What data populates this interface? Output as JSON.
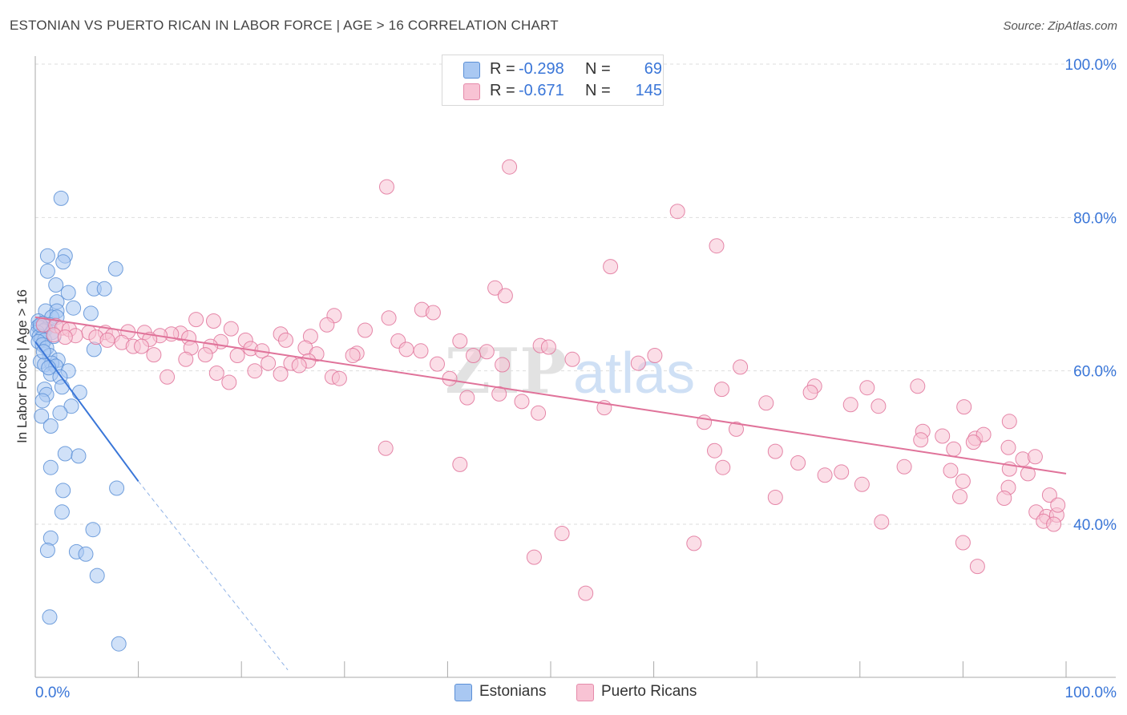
{
  "title": "ESTONIAN VS PUERTO RICAN IN LABOR FORCE | AGE > 16 CORRELATION CHART",
  "source": "Source: ZipAtlas.com",
  "watermark": "ZIPatlas",
  "legend": {
    "rows": [
      {
        "r_label": "R =",
        "r_value": "-0.298",
        "n_label": "N =",
        "n_value": "69",
        "color": "#a9c8f2",
        "border": "#5b8fd6"
      },
      {
        "r_label": "R =",
        "r_value": "-0.671",
        "n_label": "N =",
        "n_value": "145",
        "color": "#f8c3d4",
        "border": "#e58aaa"
      }
    ]
  },
  "bottom_legend": [
    {
      "label": "Estonians",
      "color": "#a9c8f2",
      "border": "#5b8fd6"
    },
    {
      "label": "Puerto Ricans",
      "color": "#f8c3d4",
      "border": "#e58aaa"
    }
  ],
  "chart_data": {
    "type": "scatter",
    "title": "ESTONIAN VS PUERTO RICAN IN LABOR FORCE | AGE > 16 CORRELATION CHART",
    "xlabel": "",
    "ylabel": "In Labor Force | Age > 16",
    "xlim": [
      0,
      100
    ],
    "ylim": [
      20,
      100
    ],
    "x_tick_labels": [
      "0.0%",
      "100.0%"
    ],
    "y_ticks": [
      40,
      60,
      80,
      100
    ],
    "y_tick_labels": [
      "40.0%",
      "60.0%",
      "80.0%",
      "100.0%"
    ],
    "grid": "horizontal dashed",
    "legend_position": "top-center",
    "series": [
      {
        "name": "Estonians",
        "color": "#5b8fd6",
        "fill": "#a9c8f2",
        "R": -0.298,
        "N": 69,
        "trend": {
          "x": [
            0,
            10
          ],
          "y": [
            63.8,
            45.6
          ]
        },
        "trend_extension": {
          "x": [
            10,
            24.5
          ],
          "y": [
            45.6,
            21.0
          ]
        },
        "points": [
          [
            2.5,
            82.5
          ],
          [
            1.2,
            75.0
          ],
          [
            2.9,
            75.0
          ],
          [
            2.7,
            74.2
          ],
          [
            7.8,
            73.3
          ],
          [
            1.2,
            73.0
          ],
          [
            2.0,
            71.2
          ],
          [
            5.7,
            70.7
          ],
          [
            6.7,
            70.7
          ],
          [
            3.2,
            70.2
          ],
          [
            2.1,
            69.0
          ],
          [
            3.7,
            68.2
          ],
          [
            1.0,
            67.8
          ],
          [
            2.1,
            67.8
          ],
          [
            5.4,
            67.5
          ],
          [
            1.6,
            67.0
          ],
          [
            2.1,
            67.0
          ],
          [
            0.3,
            66.5
          ],
          [
            0.7,
            66.2
          ],
          [
            1.4,
            66.0
          ],
          [
            0.3,
            65.8
          ],
          [
            0.5,
            65.6
          ],
          [
            1.0,
            65.4
          ],
          [
            0.8,
            65.2
          ],
          [
            0.2,
            65.0
          ],
          [
            1.6,
            65.0
          ],
          [
            0.4,
            64.5
          ],
          [
            0.6,
            64.2
          ],
          [
            0.9,
            64.0
          ],
          [
            0.3,
            63.8
          ],
          [
            0.7,
            63.4
          ],
          [
            1.1,
            63.0
          ],
          [
            5.7,
            62.8
          ],
          [
            1.4,
            62.0
          ],
          [
            2.2,
            61.4
          ],
          [
            0.5,
            61.2
          ],
          [
            1.6,
            61.0
          ],
          [
            0.9,
            60.8
          ],
          [
            2.0,
            60.6
          ],
          [
            3.2,
            60.0
          ],
          [
            1.5,
            59.6
          ],
          [
            2.4,
            59.2
          ],
          [
            2.6,
            57.9
          ],
          [
            0.9,
            57.6
          ],
          [
            4.3,
            57.2
          ],
          [
            1.1,
            56.9
          ],
          [
            0.7,
            56.1
          ],
          [
            3.5,
            55.4
          ],
          [
            2.4,
            54.5
          ],
          [
            0.6,
            54.1
          ],
          [
            1.5,
            52.8
          ],
          [
            2.9,
            49.2
          ],
          [
            4.2,
            48.9
          ],
          [
            1.5,
            47.4
          ],
          [
            2.7,
            44.4
          ],
          [
            7.9,
            44.7
          ],
          [
            2.6,
            41.6
          ],
          [
            5.6,
            39.3
          ],
          [
            1.5,
            38.2
          ],
          [
            1.2,
            36.6
          ],
          [
            4.0,
            36.4
          ],
          [
            4.9,
            36.1
          ],
          [
            6.0,
            33.3
          ],
          [
            1.4,
            27.9
          ],
          [
            8.1,
            24.4
          ],
          [
            0.5,
            66.0
          ],
          [
            1.8,
            64.5
          ],
          [
            0.8,
            62.5
          ],
          [
            1.3,
            60.4
          ]
        ]
      },
      {
        "name": "Puerto Ricans",
        "color": "#e0739a",
        "fill": "#f8c3d4",
        "R": -0.671,
        "N": 145,
        "trend": {
          "x": [
            0,
            100
          ],
          "y": [
            67.0,
            46.6
          ]
        },
        "points": [
          [
            46.0,
            86.6
          ],
          [
            34.1,
            84.0
          ],
          [
            62.3,
            80.8
          ],
          [
            66.1,
            76.3
          ],
          [
            55.8,
            73.6
          ],
          [
            44.6,
            70.8
          ],
          [
            45.6,
            69.8
          ],
          [
            37.5,
            68.0
          ],
          [
            38.6,
            67.6
          ],
          [
            29.0,
            67.2
          ],
          [
            34.3,
            66.9
          ],
          [
            15.6,
            66.7
          ],
          [
            17.3,
            66.5
          ],
          [
            0.8,
            66.0
          ],
          [
            2.0,
            65.9
          ],
          [
            28.3,
            66.0
          ],
          [
            2.6,
            65.6
          ],
          [
            19.0,
            65.5
          ],
          [
            3.3,
            65.4
          ],
          [
            32.0,
            65.3
          ],
          [
            9.0,
            65.1
          ],
          [
            10.6,
            65.0
          ],
          [
            5.2,
            65.0
          ],
          [
            14.1,
            64.9
          ],
          [
            6.8,
            65.0
          ],
          [
            13.2,
            64.8
          ],
          [
            1.8,
            64.7
          ],
          [
            3.9,
            64.6
          ],
          [
            7.5,
            64.6
          ],
          [
            23.8,
            64.8
          ],
          [
            12.1,
            64.6
          ],
          [
            26.7,
            64.5
          ],
          [
            2.9,
            64.4
          ],
          [
            5.9,
            64.4
          ],
          [
            14.9,
            64.3
          ],
          [
            11.1,
            64.1
          ],
          [
            7.0,
            64.0
          ],
          [
            24.3,
            64.0
          ],
          [
            20.4,
            64.0
          ],
          [
            18.0,
            63.8
          ],
          [
            41.2,
            63.9
          ],
          [
            35.2,
            63.9
          ],
          [
            8.4,
            63.7
          ],
          [
            9.5,
            63.2
          ],
          [
            10.3,
            63.2
          ],
          [
            17.0,
            63.2
          ],
          [
            49.0,
            63.3
          ],
          [
            49.8,
            63.1
          ],
          [
            15.1,
            63.0
          ],
          [
            26.2,
            63.0
          ],
          [
            20.9,
            62.9
          ],
          [
            37.4,
            62.6
          ],
          [
            22.0,
            62.6
          ],
          [
            43.8,
            62.5
          ],
          [
            27.3,
            62.2
          ],
          [
            31.2,
            62.3
          ],
          [
            42.5,
            62.0
          ],
          [
            11.5,
            62.1
          ],
          [
            16.5,
            62.1
          ],
          [
            19.6,
            62.0
          ],
          [
            30.8,
            62.0
          ],
          [
            52.1,
            61.5
          ],
          [
            14.6,
            61.5
          ],
          [
            26.5,
            61.3
          ],
          [
            22.6,
            61.0
          ],
          [
            24.8,
            61.0
          ],
          [
            25.6,
            60.7
          ],
          [
            39.0,
            60.9
          ],
          [
            45.3,
            60.8
          ],
          [
            68.4,
            60.5
          ],
          [
            21.3,
            60.0
          ],
          [
            17.6,
            59.7
          ],
          [
            23.8,
            59.6
          ],
          [
            12.8,
            59.2
          ],
          [
            28.8,
            59.2
          ],
          [
            29.5,
            59.0
          ],
          [
            40.2,
            59.0
          ],
          [
            18.8,
            58.5
          ],
          [
            75.6,
            58.0
          ],
          [
            85.6,
            58.0
          ],
          [
            66.6,
            57.6
          ],
          [
            80.7,
            57.8
          ],
          [
            45.0,
            57.0
          ],
          [
            41.9,
            56.5
          ],
          [
            75.2,
            57.2
          ],
          [
            47.2,
            56.0
          ],
          [
            70.9,
            55.8
          ],
          [
            79.1,
            55.6
          ],
          [
            81.8,
            55.4
          ],
          [
            90.1,
            55.3
          ],
          [
            55.2,
            55.2
          ],
          [
            48.8,
            54.5
          ],
          [
            64.9,
            53.3
          ],
          [
            94.5,
            53.4
          ],
          [
            68.0,
            52.4
          ],
          [
            86.1,
            52.1
          ],
          [
            88.0,
            51.5
          ],
          [
            91.2,
            51.2
          ],
          [
            92.0,
            51.7
          ],
          [
            85.9,
            51.0
          ],
          [
            91.0,
            50.7
          ],
          [
            94.4,
            50.0
          ],
          [
            89.1,
            49.8
          ],
          [
            34.0,
            49.9
          ],
          [
            65.9,
            49.6
          ],
          [
            71.8,
            49.5
          ],
          [
            74.0,
            48.0
          ],
          [
            41.2,
            47.8
          ],
          [
            84.3,
            47.5
          ],
          [
            88.8,
            47.0
          ],
          [
            94.5,
            47.2
          ],
          [
            95.8,
            48.5
          ],
          [
            97.0,
            48.8
          ],
          [
            66.7,
            47.4
          ],
          [
            78.2,
            46.8
          ],
          [
            76.6,
            46.4
          ],
          [
            96.3,
            46.6
          ],
          [
            90.0,
            45.6
          ],
          [
            94.4,
            44.8
          ],
          [
            80.2,
            45.2
          ],
          [
            89.7,
            43.6
          ],
          [
            94.0,
            43.4
          ],
          [
            71.8,
            43.5
          ],
          [
            97.1,
            41.6
          ],
          [
            98.1,
            41.0
          ],
          [
            99.1,
            41.2
          ],
          [
            97.8,
            40.4
          ],
          [
            98.8,
            40.0
          ],
          [
            82.1,
            40.3
          ],
          [
            90.0,
            37.6
          ],
          [
            63.9,
            37.5
          ],
          [
            51.1,
            38.8
          ],
          [
            48.4,
            35.7
          ],
          [
            91.4,
            34.5
          ],
          [
            53.4,
            31.0
          ],
          [
            98.4,
            43.8
          ],
          [
            99.2,
            42.5
          ],
          [
            60.1,
            62.0
          ],
          [
            36.0,
            62.8
          ],
          [
            58.5,
            61.0
          ]
        ]
      }
    ]
  }
}
